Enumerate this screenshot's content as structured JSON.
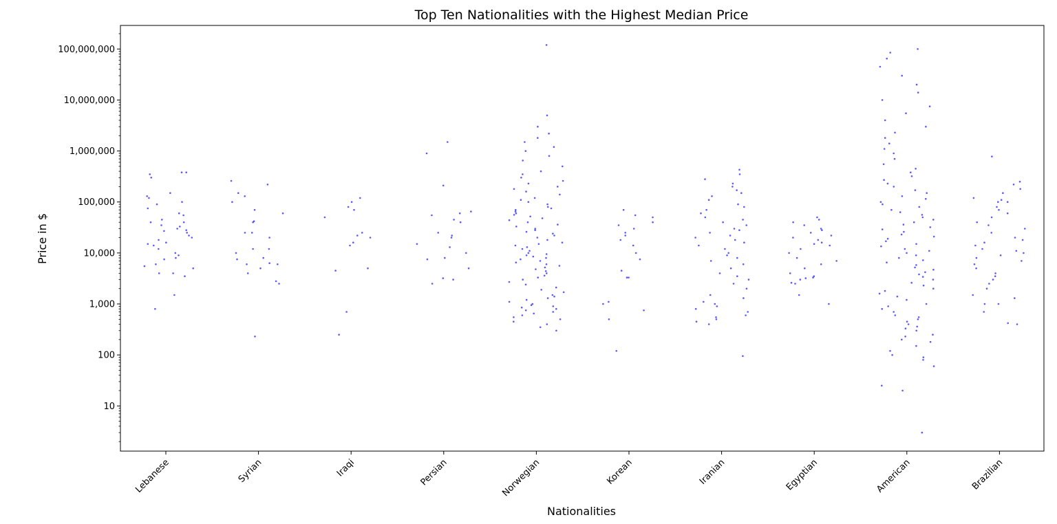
{
  "chart_data": {
    "type": "scatter",
    "title": "Top Ten Nationalities with the Highest Median Price",
    "xlabel": "Nationalities",
    "ylabel": "Price in $",
    "yscale": "log",
    "ylim": [
      1.3,
      290000000
    ],
    "grid": false,
    "color": "#0000ff",
    "y_ticks": [
      {
        "value": 10,
        "label": "10"
      },
      {
        "value": 100,
        "label": "100"
      },
      {
        "value": 1000,
        "label": "1,000"
      },
      {
        "value": 10000,
        "label": "10,000"
      },
      {
        "value": 100000,
        "label": "100,000"
      },
      {
        "value": 1000000,
        "label": "1,000,000"
      },
      {
        "value": 10000000,
        "label": "10,000,000"
      },
      {
        "value": 100000000,
        "label": "100,000,000"
      }
    ],
    "categories": [
      "Lebanese",
      "Syrian",
      "Iraqi",
      "Persian",
      "Norwegian",
      "Korean",
      "Iranian",
      "Egyptian",
      "American",
      "Brazilian"
    ],
    "points_by_category": [
      [
        1500,
        800,
        4000,
        5000,
        8000,
        10000,
        15000,
        25000,
        30000,
        40000,
        60000,
        90000,
        100000,
        120000,
        150000,
        300000,
        350000,
        380000,
        380000,
        3500,
        5500,
        7500,
        9000,
        12000,
        14000,
        18000,
        22000,
        28000,
        35000,
        45000,
        55000,
        75000,
        130000,
        6000,
        4000,
        16000,
        20000,
        27000,
        33000,
        40000
      ],
      [
        230,
        2500,
        2800,
        4000,
        5000,
        6000,
        6300,
        7500,
        8000,
        10000,
        12000,
        12000,
        20000,
        25000,
        25000,
        40000,
        42000,
        60000,
        70000,
        100000,
        130000,
        150000,
        220000,
        260000,
        6000
      ],
      [
        250,
        700,
        4500,
        5000,
        14000,
        16000,
        20000,
        22000,
        25000,
        50000,
        70000,
        80000,
        100000,
        120000
      ],
      [
        2500,
        3200,
        5000,
        7500,
        8000,
        10000,
        13000,
        15000,
        20000,
        22000,
        25000,
        40000,
        45000,
        55000,
        60000,
        65000,
        210000,
        900000,
        1500000,
        3000
      ],
      [
        300,
        350,
        400,
        450,
        500,
        550,
        600,
        650,
        700,
        750,
        800,
        850,
        900,
        950,
        1000,
        1100,
        1200,
        1300,
        1400,
        1500,
        1700,
        1900,
        2100,
        2400,
        2700,
        3000,
        3300,
        3600,
        4000,
        4400,
        4800,
        5200,
        5600,
        6000,
        6500,
        7000,
        7500,
        8000,
        8500,
        9000,
        9500,
        10000,
        11000,
        12000,
        13000,
        14000,
        15000,
        16000,
        18000,
        20000,
        22000,
        24000,
        26000,
        28000,
        30000,
        33000,
        36000,
        40000,
        44000,
        48000,
        52000,
        56000,
        60000,
        65000,
        70000,
        75000,
        80000,
        90000,
        100000,
        110000,
        120000,
        140000,
        160000,
        180000,
        200000,
        230000,
        260000,
        300000,
        350000,
        400000,
        500000,
        650000,
        800000,
        1000000,
        1200000,
        1500000,
        1800000,
        2200000,
        3000000,
        5000000,
        120000000
      ],
      [
        120,
        500,
        750,
        1000,
        1100,
        3300,
        3300,
        4500,
        7500,
        10000,
        14000,
        18000,
        22000,
        25000,
        30000,
        35000,
        40000,
        50000,
        55000,
        70000
      ],
      [
        95,
        400,
        450,
        500,
        550,
        600,
        700,
        800,
        900,
        1000,
        1100,
        1300,
        1500,
        2000,
        2500,
        3000,
        3500,
        4000,
        5000,
        6000,
        7000,
        8000,
        9000,
        10000,
        12000,
        14000,
        16000,
        18000,
        20000,
        22000,
        25000,
        28000,
        30000,
        35000,
        40000,
        45000,
        50000,
        60000,
        70000,
        80000,
        90000,
        110000,
        130000,
        150000,
        170000,
        200000,
        230000,
        280000,
        350000,
        430000
      ],
      [
        1000,
        1500,
        2500,
        2600,
        3000,
        3200,
        3300,
        3500,
        4000,
        5000,
        6000,
        7000,
        8000,
        10000,
        12000,
        14000,
        15000,
        16000,
        18000,
        20000,
        22000,
        25000,
        28000,
        30000,
        35000,
        40000,
        45000,
        50000
      ],
      [
        3,
        20,
        25,
        60,
        80,
        90,
        100,
        120,
        150,
        180,
        200,
        230,
        250,
        300,
        330,
        360,
        400,
        450,
        500,
        550,
        600,
        700,
        800,
        900,
        1000,
        1200,
        1400,
        1600,
        1800,
        2000,
        2300,
        2600,
        3000,
        3400,
        3800,
        4200,
        4700,
        5200,
        5800,
        6500,
        7200,
        8000,
        9000,
        10000,
        11000,
        12000,
        13500,
        15000,
        17000,
        19000,
        21000,
        23000,
        26000,
        29000,
        32000,
        36000,
        40000,
        45000,
        50000,
        56000,
        63000,
        70000,
        80000,
        90000,
        100000,
        115000,
        130000,
        150000,
        170000,
        200000,
        230000,
        270000,
        320000,
        380000,
        450000,
        550000,
        700000,
        900000,
        1100000,
        1400000,
        1800000,
        2300000,
        3000000,
        4000000,
        5500000,
        7500000,
        10000000,
        14000000,
        20000000,
        30000000,
        45000000,
        65000000,
        85000000,
        100000000
      ],
      [
        400,
        420,
        700,
        1000,
        1000,
        1300,
        1500,
        2000,
        2500,
        3000,
        3500,
        4000,
        5000,
        6000,
        7000,
        8000,
        9000,
        10000,
        11000,
        12000,
        14000,
        16000,
        18000,
        20000,
        25000,
        30000,
        35000,
        40000,
        50000,
        60000,
        70000,
        80000,
        100000,
        100000,
        110000,
        120000,
        150000,
        180000,
        220000,
        250000,
        780000
      ]
    ]
  }
}
